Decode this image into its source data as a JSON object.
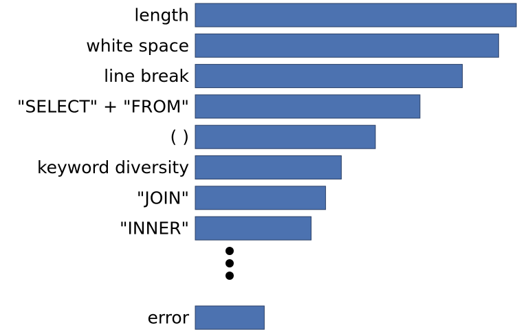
{
  "chart_data": {
    "type": "bar",
    "orientation": "horizontal",
    "categories": [
      "length",
      "white space",
      "line break",
      "\"SELECT\" + \"FROM\"",
      "( )",
      "keyword diversity",
      "\"JOIN\"",
      "\"INNER\"",
      "error"
    ],
    "values": [
      100,
      94.5,
      83.2,
      70.0,
      56.1,
      45.5,
      40.6,
      36.1,
      21.5
    ],
    "xlim": [
      0,
      100
    ],
    "title": "",
    "xlabel": "",
    "ylabel": "",
    "grid": false,
    "legend": "none",
    "bar_color": "#4c72b0",
    "ellipsis_after_index": 7
  }
}
